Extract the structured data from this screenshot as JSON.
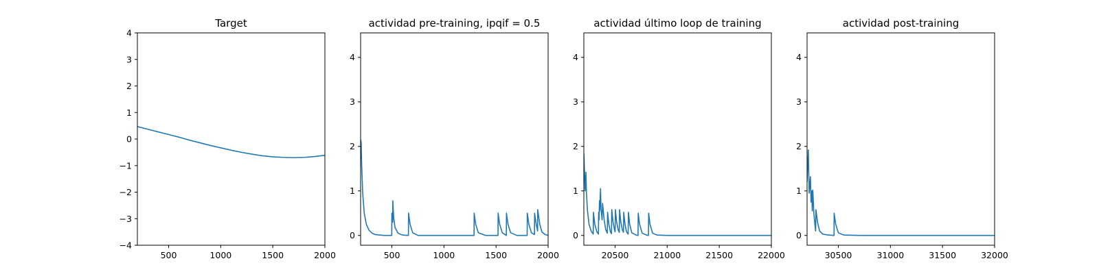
{
  "chart_data": [
    {
      "type": "line",
      "title": "Target",
      "xlabel": "",
      "ylabel": "",
      "xlim": [
        200,
        2000
      ],
      "ylim": [
        -4,
        4
      ],
      "xticks": [
        500,
        1000,
        1500,
        2000
      ],
      "yticks": [
        -4,
        -3,
        -2,
        -1,
        0,
        1,
        2,
        3,
        4
      ],
      "grid": false,
      "series": [
        {
          "color": "#1f77b4",
          "x": [
            200,
            300,
            400,
            500,
            600,
            700,
            800,
            900,
            1000,
            1100,
            1200,
            1300,
            1400,
            1500,
            1600,
            1700,
            1800,
            1900,
            2000
          ],
          "y": [
            0.47,
            0.37,
            0.27,
            0.17,
            0.07,
            -0.04,
            -0.14,
            -0.24,
            -0.33,
            -0.42,
            -0.5,
            -0.57,
            -0.63,
            -0.67,
            -0.69,
            -0.7,
            -0.69,
            -0.66,
            -0.61
          ]
        }
      ]
    },
    {
      "type": "line",
      "title": "actividad pre-training, ipqif = 0.5",
      "xlabel": "",
      "ylabel": "",
      "xlim": [
        200,
        2000
      ],
      "ylim": [
        -0.22,
        4.55
      ],
      "xticks": [
        500,
        1000,
        1500,
        2000
      ],
      "yticks": [
        0,
        1,
        2,
        3,
        4
      ],
      "grid": false,
      "series": [
        {
          "color": "#1f77b4",
          "x": [
            200,
            205,
            210,
            220,
            235,
            255,
            280,
            310,
            340,
            380,
            430,
            499,
            500,
            508,
            509,
            514,
            517,
            530,
            560,
            600,
            659,
            660,
            675,
            700,
            750,
            1289,
            1290,
            1305,
            1330,
            1400,
            1519,
            1520,
            1535,
            1560,
            1599,
            1600,
            1615,
            1640,
            1700,
            1799,
            1800,
            1815,
            1840,
            1869,
            1870,
            1885,
            1899,
            1900,
            1920,
            1940,
            1970,
            2000
          ],
          "y": [
            2.15,
            2.1,
            1.6,
            0.95,
            0.5,
            0.25,
            0.12,
            0.05,
            0.02,
            0.01,
            0,
            0,
            0.5,
            0.3,
            0.78,
            0.55,
            0.42,
            0.18,
            0.05,
            0.01,
            0,
            0.5,
            0.25,
            0.06,
            0,
            0,
            0.5,
            0.25,
            0.06,
            0,
            0,
            0.5,
            0.25,
            0.06,
            0,
            0.5,
            0.25,
            0.06,
            0,
            0,
            0.5,
            0.25,
            0.06,
            0.02,
            0.5,
            0.26,
            0.1,
            0.58,
            0.25,
            0.08,
            0.02,
            0
          ]
        }
      ]
    },
    {
      "type": "line",
      "title": "actividad último loop de training",
      "xlabel": "",
      "ylabel": "",
      "xlim": [
        20200,
        22000
      ],
      "ylim": [
        -0.22,
        4.55
      ],
      "xticks": [
        20500,
        21000,
        21500,
        22000
      ],
      "yticks": [
        0,
        1,
        2,
        3,
        4
      ],
      "grid": false,
      "series": [
        {
          "color": "#1f77b4",
          "x": [
            20200,
            20212,
            20220,
            20225,
            20235,
            20250,
            20270,
            20290,
            20292,
            20305,
            20325,
            20340,
            20342,
            20346,
            20350,
            20352,
            20360,
            20365,
            20375,
            20380,
            20395,
            20410,
            20425,
            20428,
            20440,
            20455,
            20465,
            20468,
            20480,
            20495,
            20500,
            20503,
            20515,
            20530,
            20540,
            20543,
            20555,
            20570,
            20580,
            20583,
            20595,
            20610,
            20625,
            20628,
            20640,
            20660,
            20700,
            20720,
            20722,
            20735,
            20760,
            20800,
            20820,
            20822,
            20835,
            20860,
            20900,
            21000,
            21500,
            22000
          ],
          "y": [
            1.85,
            1.0,
            1.42,
            0.95,
            0.55,
            0.25,
            0.1,
            0.03,
            0.52,
            0.25,
            0.08,
            0.03,
            0.52,
            0.35,
            0.78,
            0.55,
            1.05,
            0.6,
            0.35,
            0.72,
            0.35,
            0.13,
            0.05,
            0.52,
            0.25,
            0.08,
            0.04,
            0.58,
            0.3,
            0.12,
            0.08,
            0.58,
            0.3,
            0.12,
            0.07,
            0.58,
            0.3,
            0.12,
            0.07,
            0.52,
            0.25,
            0.08,
            0.03,
            0.52,
            0.25,
            0.06,
            0.01,
            0,
            0.5,
            0.25,
            0.05,
            0.01,
            0,
            0.5,
            0.25,
            0.05,
            0.01,
            0,
            0,
            0
          ]
        }
      ]
    },
    {
      "type": "line",
      "title": "actividad post-training",
      "xlabel": "",
      "ylabel": "",
      "xlim": [
        30200,
        32000
      ],
      "ylim": [
        -0.22,
        4.55
      ],
      "xticks": [
        30500,
        31000,
        31500,
        32000
      ],
      "yticks": [
        0,
        1,
        2,
        3,
        4
      ],
      "grid": false,
      "series": [
        {
          "color": "#1f77b4",
          "x": [
            30200,
            30212,
            30220,
            30232,
            30238,
            30245,
            30250,
            30255,
            30265,
            30275,
            30282,
            30285,
            30300,
            30320,
            30350,
            30400,
            30459,
            30460,
            30475,
            30500,
            30550,
            30700,
            31000,
            31500,
            32000
          ],
          "y": [
            1.2,
            1.92,
            0.95,
            1.32,
            0.75,
            1.0,
            0.55,
            1.02,
            0.5,
            0.25,
            0.1,
            0.58,
            0.3,
            0.1,
            0.03,
            0.01,
            0,
            0.5,
            0.25,
            0.06,
            0.01,
            0,
            0,
            0,
            0
          ]
        }
      ]
    }
  ]
}
